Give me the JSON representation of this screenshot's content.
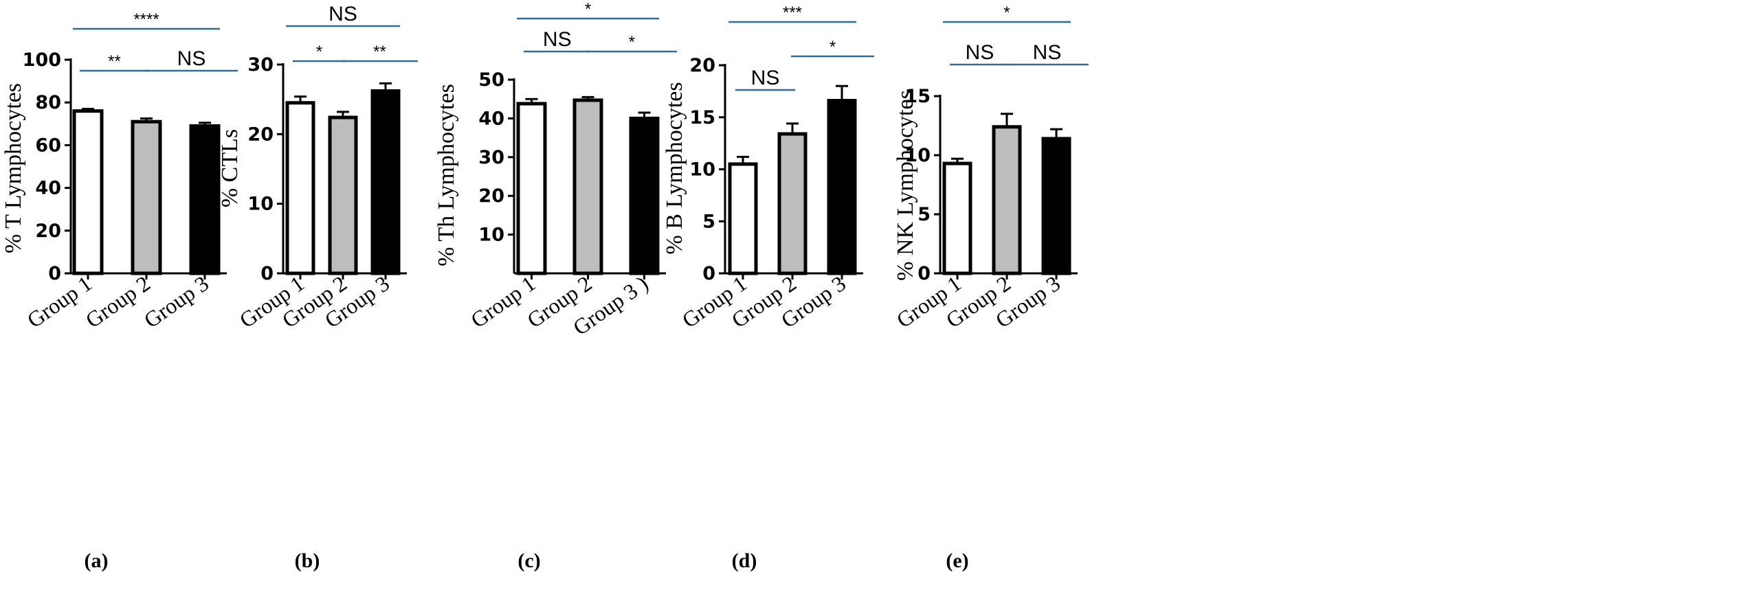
{
  "chart_data": [
    {
      "type": "bar",
      "panel_label": "(a)",
      "ylabel": "% T Lymphocytes",
      "categories": [
        "Group 1",
        "Group 2",
        "Group 3"
      ],
      "values": [
        76,
        71,
        69
      ],
      "errors": [
        1,
        1.5,
        1.5
      ],
      "ylim": [
        0,
        100
      ],
      "yticks": [
        0,
        20,
        40,
        60,
        80,
        100
      ],
      "bar_colors": [
        "#ffffff",
        "#bdbdbd",
        "#000000"
      ],
      "comparisons": [
        {
          "from": 0,
          "to": 2,
          "label": "****",
          "level": 2
        },
        {
          "from": 0,
          "to": 1,
          "label": "**",
          "level": 1
        },
        {
          "from": 1,
          "to": 2,
          "label": "NS",
          "level": 1
        }
      ]
    },
    {
      "type": "bar",
      "panel_label": "(b)",
      "ylabel": "% CTLs",
      "categories": [
        "Group 1",
        "Group 2",
        "Group 3"
      ],
      "values": [
        24.5,
        22.4,
        26.2
      ],
      "errors": [
        0.9,
        0.8,
        1.1
      ],
      "ylim": [
        0,
        30
      ],
      "yticks": [
        0,
        10,
        20,
        30
      ],
      "bar_colors": [
        "#ffffff",
        "#bdbdbd",
        "#000000"
      ],
      "comparisons": [
        {
          "from": 0,
          "to": 2,
          "label": "NS",
          "level": 2
        },
        {
          "from": 0,
          "to": 1,
          "label": "*",
          "level": 1
        },
        {
          "from": 1,
          "to": 2,
          "label": "**",
          "level": 1
        }
      ]
    },
    {
      "type": "bar",
      "panel_label": "(c)",
      "ylabel": "% Th Lymphocytes",
      "categories": [
        "Group 1",
        "Group 2",
        "Group 3 )"
      ],
      "values": [
        43.8,
        44.7,
        40
      ],
      "errors": [
        1.2,
        0.8,
        1.5
      ],
      "ylim": [
        0,
        50
      ],
      "yticks": [
        10,
        20,
        30,
        40,
        50
      ],
      "bar_colors": [
        "#ffffff",
        "#bdbdbd",
        "#000000"
      ],
      "comparisons": [
        {
          "from": 0,
          "to": 2,
          "label": "*",
          "level": 2
        },
        {
          "from": 0,
          "to": 1,
          "label": "NS",
          "level": 1
        },
        {
          "from": 1,
          "to": 2,
          "label": "*",
          "level": 1
        }
      ]
    },
    {
      "type": "bar",
      "panel_label": "(d)",
      "ylabel": "% B Lymphocytes",
      "categories": [
        "Group 1",
        "Group 2",
        "Group 3"
      ],
      "values": [
        10.5,
        13.4,
        16.6
      ],
      "errors": [
        0.7,
        1.0,
        1.4
      ],
      "ylim": [
        0,
        20
      ],
      "yticks": [
        0,
        5,
        10,
        15,
        20
      ],
      "bar_colors": [
        "#ffffff",
        "#bdbdbd",
        "#000000"
      ],
      "comparisons": [
        {
          "from": 0,
          "to": 2,
          "label": "***",
          "level": 2
        },
        {
          "from": 0,
          "to": 1,
          "label": "NS",
          "level": 0
        },
        {
          "from": 1,
          "to": 2,
          "label": "*",
          "level": 1
        }
      ]
    },
    {
      "type": "bar",
      "panel_label": "(e)",
      "ylabel": "% NK Lymphocytes",
      "categories": [
        "Group 1",
        "Group 2",
        "Group 3"
      ],
      "values": [
        9.3,
        12.4,
        11.4
      ],
      "errors": [
        0.4,
        1.1,
        0.8
      ],
      "ylim": [
        0,
        15
      ],
      "yticks": [
        0,
        5,
        10,
        15
      ],
      "bar_colors": [
        "#ffffff",
        "#bdbdbd",
        "#000000"
      ],
      "comparisons": [
        {
          "from": 0,
          "to": 2,
          "label": "*",
          "level": 2
        },
        {
          "from": 0,
          "to": 1,
          "label": "NS",
          "level": 1
        },
        {
          "from": 1,
          "to": 2,
          "label": "NS",
          "level": 1
        }
      ]
    }
  ],
  "colors": {
    "significance_line": "#2e6d9a",
    "axis": "#000000"
  }
}
